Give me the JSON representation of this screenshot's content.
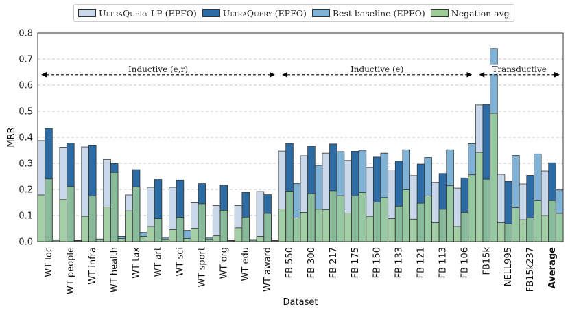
{
  "chart_data": {
    "type": "bar",
    "xlabel": "Dataset",
    "ylabel": "MRR",
    "ylim": [
      0,
      0.8
    ],
    "yticks": [
      "0.0",
      "0.1",
      "0.2",
      "0.3",
      "0.4",
      "0.5",
      "0.6",
      "0.7",
      "0.8"
    ],
    "categories": [
      "WT loc",
      "WT people",
      "WT infra",
      "WT health",
      "WT tax",
      "WT art",
      "WT sci",
      "WT sport",
      "WT org",
      "WT edu",
      "WT award",
      "FB 550",
      "FB 300",
      "FB 217",
      "FB 175",
      "FB 150",
      "FB 133",
      "FB 121",
      "FB 113",
      "FB 106",
      "FB15k",
      "NELL995",
      "FB15k237",
      "Average"
    ],
    "bold_category": "Average",
    "series": [
      {
        "name": "UltraQuery LP (EPFO)",
        "color": "#c8d8ea",
        "values": [
          0.387,
          0.362,
          0.363,
          0.315,
          0.179,
          0.208,
          0.208,
          0.149,
          0.138,
          0.138,
          0.192,
          0.347,
          0.329,
          0.339,
          0.311,
          0.284,
          0.275,
          0.253,
          0.227,
          0.205,
          0.524,
          0.258,
          0.221,
          0.271
        ]
      },
      {
        "name": "UltraQuery (EPFO)",
        "color": "#2d6ba5",
        "values": [
          0.434,
          0.377,
          0.37,
          0.299,
          0.276,
          0.238,
          0.236,
          0.222,
          0.216,
          0.189,
          0.18,
          0.376,
          0.366,
          0.374,
          0.346,
          0.324,
          0.308,
          0.297,
          0.261,
          0.244,
          0.525,
          0.231,
          0.254,
          0.302
        ]
      },
      {
        "name": "Best baseline (EPFO)",
        "color": "#7fb2d4",
        "values": [
          0.007,
          0.005,
          0.01,
          0.02,
          0.035,
          0.016,
          0.043,
          0.016,
          0.005,
          0.008,
          0.005,
          0.222,
          0.292,
          0.345,
          0.35,
          0.339,
          0.352,
          0.322,
          0.352,
          0.375,
          0.74,
          0.33,
          0.336,
          0.198
        ]
      }
    ],
    "negation_series": {
      "name": "Negation avg",
      "color": "#9ccd97",
      "values_lp": [
        0.179,
        0.161,
        0.097,
        0.133,
        0.118,
        0.058,
        0.046,
        0.051,
        0.022,
        0.053,
        0.02,
        0.125,
        0.112,
        0.122,
        0.109,
        0.097,
        0.088,
        0.086,
        0.072,
        0.058,
        0.342,
        0.072,
        0.084,
        0.1
      ],
      "values_ultra": [
        0.24,
        0.212,
        0.175,
        0.265,
        0.21,
        0.088,
        0.093,
        0.145,
        0.12,
        0.094,
        0.108,
        0.193,
        0.184,
        0.195,
        0.175,
        0.151,
        0.136,
        0.147,
        0.124,
        0.112,
        0.239,
        0.068,
        0.091,
        0.157
      ],
      "values_baseline": [
        0.005,
        0.003,
        0.007,
        0.012,
        0.02,
        0.01,
        0.012,
        0.01,
        0.003,
        0.005,
        0.003,
        0.091,
        0.124,
        0.176,
        0.188,
        0.169,
        0.199,
        0.175,
        0.214,
        0.256,
        0.492,
        0.13,
        0.157,
        0.108
      ]
    },
    "regions": [
      {
        "label": "Inductive (e,r)",
        "from_index": 0,
        "to_index": 10
      },
      {
        "label": "Inductive (e)",
        "from_index": 11,
        "to_index": 19
      },
      {
        "label": "Transductive",
        "from_index": 20,
        "to_index": 23
      }
    ],
    "annotation_y": 0.64,
    "grid": true,
    "legend_position": "top-center"
  },
  "legend": {
    "items": [
      {
        "prefix": "UltraQuery",
        "suffix": " LP (EPFO)",
        "color": "#c8d8ea"
      },
      {
        "prefix": "UltraQuery",
        "suffix": " (EPFO)",
        "color": "#2d6ba5"
      },
      {
        "prefix": "",
        "suffix": "Best baseline (EPFO)",
        "color": "#7fb2d4"
      },
      {
        "prefix": "",
        "suffix": "Negation avg",
        "color": "#9ccd97"
      }
    ]
  }
}
